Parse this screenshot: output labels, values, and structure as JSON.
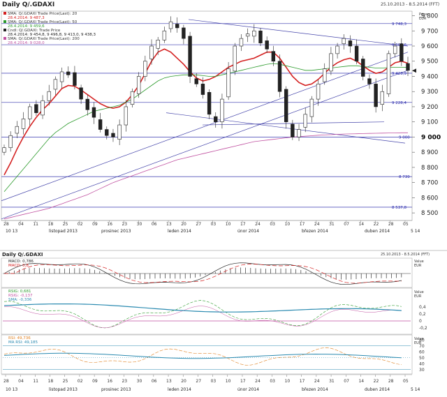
{
  "header": {
    "title": "Daily Q/.GDAXI",
    "range": "25.10.2013 - 8.5.2014 (FFT)"
  },
  "legend": [
    {
      "label": "SMA: Q/.GDAXI Trade Price(Last): 20",
      "value": "28.4.2014: 9 487,3",
      "color": "#d42020"
    },
    {
      "label": "SMA: Q/.GDAXI Trade Price(Last): 50",
      "value": "28.4.2014: 9 459,6",
      "color": "#2a9a2a"
    },
    {
      "label": "Cndl: Q/.GDAXI: Trade Price",
      "value": "28.4.2014: 9 454,8, 9 496,8, 9 413,0, 9 438,3",
      "color": "#222222"
    },
    {
      "label": "SMA: Q/.GDAXI Trade Price(Last): 200",
      "value": "28.4.2014: 9 028,0",
      "color": "#c050a0"
    }
  ],
  "price_axis": {
    "header": [
      "Price",
      "EUR"
    ],
    "ticks": [
      "9 800",
      "9 700",
      "9 600",
      "9 500",
      "9 400",
      "9 300",
      "9 200",
      "9 100",
      "9 000",
      "8 900",
      "8 800",
      "8 700",
      "8 600",
      "8 500"
    ],
    "tick_values": [
      9800,
      9700,
      9600,
      9500,
      9400,
      9300,
      9200,
      9100,
      9000,
      8900,
      8800,
      8700,
      8600,
      8500
    ],
    "bold_tick": "9 000"
  },
  "levels": [
    {
      "label": "9 748,3",
      "value": 9748.3
    },
    {
      "label": "9 608,6",
      "value": 9608.6
    },
    {
      "label": "9 420,9",
      "value": 9420.9
    },
    {
      "label": "9 228,4",
      "value": 9228.4
    },
    {
      "label": "9 000",
      "value": 9000
    },
    {
      "label": "8 739",
      "value": 8739
    },
    {
      "label": "8 537,8",
      "value": 8537.8
    }
  ],
  "date_axis": {
    "days": [
      "28",
      "04",
      "11",
      "18",
      "25",
      "02",
      "09",
      "16",
      "23",
      "30",
      "06",
      "13",
      "20",
      "27",
      "03",
      "10",
      "17",
      "24",
      "03",
      "10",
      "17",
      "24",
      "31",
      "07",
      "14",
      "22",
      "28",
      "05"
    ],
    "months": [
      "10 13",
      "listopad 2013",
      "prosinec 2013",
      "leden 2014",
      "únor 2014",
      "březen 2014",
      "duben 2014",
      "5 14"
    ]
  },
  "sub_header": {
    "title": "Daily Q/.GDAXI",
    "range": "25.10.2013 - 8.5.2014 (FFT)"
  },
  "macd_panel": {
    "legend": [
      {
        "label": "MACD: 0,786",
        "color": "#222222"
      },
      {
        "label": "MACD: 0,8",
        "color": "#d42020"
      }
    ],
    "axis": [
      "Value",
      "EUR"
    ]
  },
  "rsi_panel": {
    "legend": [
      {
        "label": "RSIG: 0,681",
        "color": "#2a9a2a"
      },
      {
        "label": "RSIG: -0,137",
        "color": "#c050a0"
      },
      {
        "label": "SMA: -0,336",
        "color": "#2a8ab0"
      }
    ],
    "axis": [
      "Value",
      "EUR"
    ],
    "ticks": [
      "0,4",
      "0,2",
      "0",
      "-0,2"
    ]
  },
  "rsi2_panel": {
    "legend": [
      {
        "label": "RSI: 49,736",
        "color": "#e08020"
      },
      {
        "label": "MA RSI: 49,185",
        "color": "#2a8ab0"
      }
    ],
    "axis": [
      "Value",
      "EUR"
    ],
    "ticks": [
      "80",
      "70",
      "60",
      "50",
      "40",
      "30"
    ]
  },
  "chart_data": {
    "type": "line",
    "title": "Daily Q/.GDAXI",
    "x_range": [
      "25.10.2013",
      "8.5.2014"
    ],
    "ylim": [
      8450,
      9830
    ],
    "candles_close_approx": [
      8930,
      9010,
      9070,
      9120,
      9200,
      9160,
      9240,
      9300,
      9380,
      9430,
      9410,
      9340,
      9250,
      9180,
      9130,
      9050,
      9010,
      9000,
      9080,
      9200,
      9300,
      9400,
      9500,
      9600,
      9640,
      9700,
      9760,
      9720,
      9650,
      9400,
      9350,
      9280,
      9150,
      9100,
      9250,
      9450,
      9600,
      9650,
      9680,
      9700,
      9620,
      9580,
      9500,
      9300,
      9100,
      9000,
      9050,
      9150,
      9250,
      9350,
      9450,
      9550,
      9600,
      9650,
      9600,
      9500,
      9400,
      9350,
      9200,
      9300,
      9550,
      9600,
      9500,
      9440
    ],
    "series": [
      {
        "name": "SMA 20",
        "values": [
          8750,
          8830,
          8920,
          9000,
          9070,
          9130,
          9180,
          9220,
          9270,
          9320,
          9340,
          9335,
          9310,
          9280,
          9250,
          9220,
          9200,
          9190,
          9200,
          9230,
          9280,
          9340,
          9420,
          9500,
          9560,
          9580,
          9560,
          9520,
          9480,
          9430,
          9390,
          9370,
          9380,
          9400,
          9430,
          9460,
          9480,
          9500,
          9510,
          9520,
          9540,
          9560,
          9560,
          9520,
          9460,
          9400,
          9360,
          9340,
          9350,
          9380,
          9420,
          9460,
          9490,
          9510,
          9520,
          9500,
          9470,
          9440,
          9420,
          9430,
          9460,
          9490,
          9500,
          9487
        ]
      },
      {
        "name": "SMA 50",
        "values": [
          8640,
          8690,
          8740,
          8790,
          8840,
          8890,
          8940,
          8990,
          9030,
          9060,
          9090,
          9110,
          9130,
          9150,
          9170,
          9180,
          9190,
          9200,
          9210,
          9230,
          9250,
          9280,
          9310,
          9340,
          9370,
          9390,
          9400,
          9405,
          9410,
          9410,
          9410,
          9405,
          9400,
          9400,
          9410,
          9420,
          9430,
          9440,
          9450,
          9460,
          9470,
          9480,
          9485,
          9480,
          9470,
          9460,
          9450,
          9440,
          9440,
          9445,
          9450,
          9455,
          9460,
          9465,
          9470,
          9470,
          9465,
          9460,
          9455,
          9455,
          9458,
          9460,
          9460,
          9459
        ]
      },
      {
        "name": "SMA 200",
        "values": [
          8460,
          8470,
          8480,
          8490,
          8500,
          8510,
          8520,
          8530,
          8545,
          8560,
          8575,
          8590,
          8605,
          8620,
          8640,
          8660,
          8680,
          8700,
          8715,
          8730,
          8745,
          8760,
          8775,
          8790,
          8805,
          8820,
          8835,
          8850,
          8860,
          8870,
          8880,
          8890,
          8900,
          8910,
          8920,
          8930,
          8940,
          8950,
          8960,
          8970,
          8975,
          8980,
          8985,
          8990,
          8995,
          9000,
          9003,
          9006,
          9009,
          9012,
          9014,
          9016,
          9018,
          9020,
          9021,
          9022,
          9023,
          9024,
          9025,
          9026,
          9027,
          9027,
          9028,
          9028
        ]
      }
    ],
    "legend_position": "top-left",
    "grid": false
  }
}
